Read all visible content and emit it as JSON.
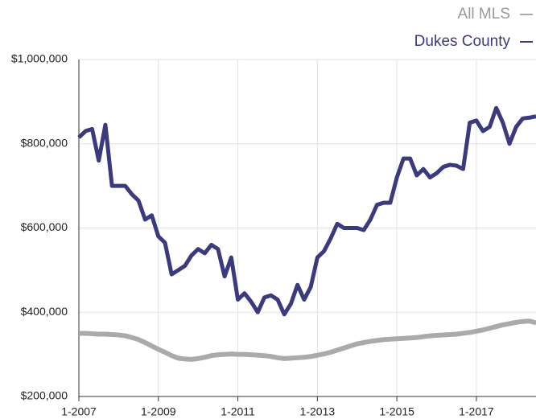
{
  "chart_data": {
    "type": "line",
    "categories": [
      "1-2007",
      null,
      null,
      null,
      null,
      null,
      null,
      null,
      null,
      null,
      null,
      null,
      "1-2009",
      null,
      null,
      null,
      null,
      null,
      null,
      null,
      null,
      null,
      null,
      null,
      "1-2011",
      null,
      null,
      null,
      null,
      null,
      null,
      null,
      null,
      null,
      null,
      null,
      "1-2013",
      null,
      null,
      null,
      null,
      null,
      null,
      null,
      null,
      null,
      null,
      null,
      "1-2015",
      null,
      null,
      null,
      null,
      null,
      null,
      null,
      null,
      null,
      null,
      null,
      "1-2017",
      null,
      null,
      null,
      null,
      null,
      null,
      null,
      null,
      null
    ],
    "series": [
      {
        "name": "All MLS",
        "color": "#aaaaaa",
        "values": [
          350000,
          350000,
          349000,
          348000,
          348000,
          347000,
          346000,
          344000,
          340000,
          335000,
          328000,
          320000,
          312000,
          305000,
          297000,
          291000,
          289000,
          288000,
          290000,
          293000,
          297000,
          299000,
          300000,
          301000,
          300000,
          300000,
          299000,
          298000,
          297000,
          295000,
          292000,
          290000,
          291000,
          292000,
          293000,
          295000,
          298000,
          301000,
          305000,
          310000,
          315000,
          320000,
          325000,
          328000,
          331000,
          333000,
          335000,
          336000,
          337000,
          338000,
          339000,
          340000,
          342000,
          344000,
          345000,
          346000,
          347000,
          348000,
          350000,
          352000,
          355000,
          358000,
          362000,
          366000,
          370000,
          373000,
          376000,
          378000,
          379000,
          375000
        ]
      },
      {
        "name": "Dukes County",
        "color": "#3a3a7c",
        "values": [
          815000,
          830000,
          835000,
          760000,
          845000,
          700000,
          700000,
          700000,
          680000,
          665000,
          620000,
          630000,
          580000,
          565000,
          490000,
          500000,
          510000,
          535000,
          550000,
          540000,
          560000,
          550000,
          485000,
          530000,
          430000,
          445000,
          425000,
          400000,
          435000,
          440000,
          430000,
          395000,
          420000,
          465000,
          430000,
          460000,
          530000,
          545000,
          575000,
          610000,
          600000,
          600000,
          600000,
          595000,
          620000,
          655000,
          660000,
          660000,
          720000,
          765000,
          765000,
          725000,
          740000,
          720000,
          730000,
          745000,
          750000,
          748000,
          740000,
          850000,
          855000,
          830000,
          840000,
          885000,
          850000,
          800000,
          840000,
          860000,
          862000,
          865000
        ]
      }
    ],
    "ylim": [
      200000,
      1000000
    ],
    "yticks": [
      {
        "value": 200000,
        "label": "$200,000"
      },
      {
        "value": 400000,
        "label": "$400,000"
      },
      {
        "value": 600000,
        "label": "$600,000"
      },
      {
        "value": 800000,
        "label": "$800,000"
      },
      {
        "value": 1000000,
        "label": "$1,000,000"
      }
    ],
    "grid": true,
    "legend": "top-right"
  }
}
